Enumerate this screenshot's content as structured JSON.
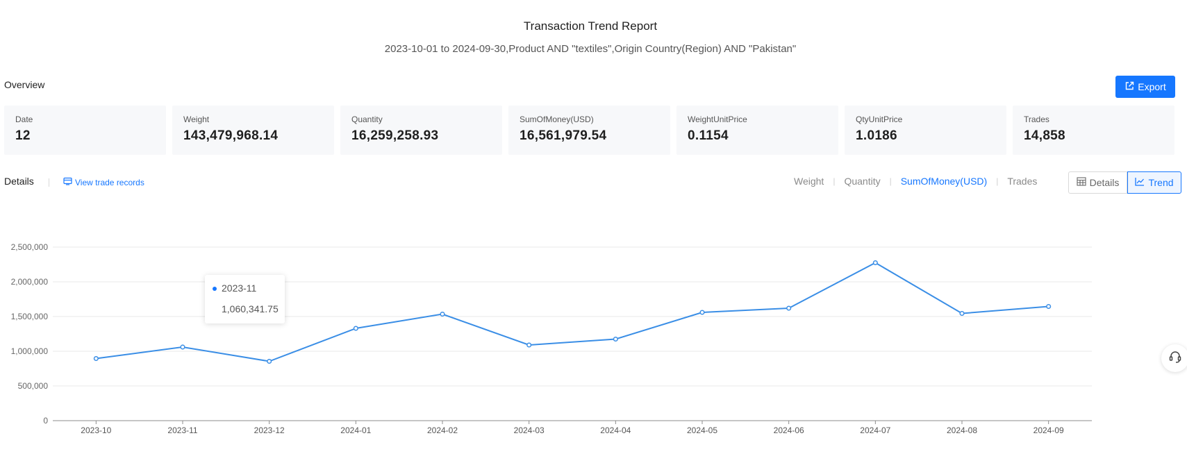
{
  "report": {
    "title": "Transaction Trend Report",
    "subtitle": "2023-10-01 to 2024-09-30,Product AND \"textiles\",Origin Country(Region) AND \"Pakistan\""
  },
  "overview": {
    "label": "Overview",
    "export_label": "Export",
    "cards": [
      {
        "label": "Date",
        "value": "12"
      },
      {
        "label": "Weight",
        "value": "143,479,968.14"
      },
      {
        "label": "Quantity",
        "value": "16,259,258.93"
      },
      {
        "label": "SumOfMoney(USD)",
        "value": "16,561,979.54"
      },
      {
        "label": "WeightUnitPrice",
        "value": "0.1154"
      },
      {
        "label": "QtyUnitPrice",
        "value": "1.0186"
      },
      {
        "label": "Trades",
        "value": "14,858"
      }
    ]
  },
  "details": {
    "label": "Details",
    "view_records": "View trade records",
    "metric_tabs": [
      "Weight",
      "Quantity",
      "SumOfMoney(USD)",
      "Trades"
    ],
    "active_metric": "SumOfMoney(USD)",
    "toggle": {
      "details_label": "Details",
      "trend_label": "Trend",
      "active": "Trend"
    }
  },
  "tooltip": {
    "label": "2023-11",
    "value": "1,060,341.75"
  },
  "colors": {
    "accent": "#1677ff",
    "line": "#3a8ee6",
    "grid": "#e8e8e8"
  },
  "icons": [
    "external-link-icon",
    "record-icon",
    "table-icon",
    "trend-icon",
    "headset-icon"
  ],
  "chart_data": {
    "type": "line",
    "categories": [
      "2023-10",
      "2023-11",
      "2023-12",
      "2024-01",
      "2024-02",
      "2024-03",
      "2024-04",
      "2024-05",
      "2024-06",
      "2024-07",
      "2024-08",
      "2024-09"
    ],
    "series": [
      {
        "values": [
          895000,
          1060341.75,
          855000,
          1330000,
          1535000,
          1090000,
          1175000,
          1560000,
          1620000,
          2275000,
          1545000,
          1645000
        ]
      }
    ],
    "yticks": [
      "0",
      "500,000",
      "1,000,000",
      "1,500,000",
      "2,000,000",
      "2,500,000"
    ],
    "ylim": [
      0,
      2500000
    ],
    "grid": true
  }
}
